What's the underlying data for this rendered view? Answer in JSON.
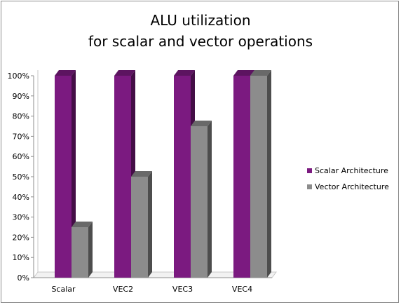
{
  "chart_data": {
    "type": "bar",
    "title_lines": [
      "ALU utilization",
      "for scalar and vector operations"
    ],
    "categories": [
      "Scalar",
      "VEC2",
      "VEC3",
      "VEC4"
    ],
    "series": [
      {
        "name": "Scalar Architecture",
        "color": "#7b1a80",
        "values": [
          100,
          100,
          100,
          100
        ]
      },
      {
        "name": "Vector Architecture",
        "color": "#8c8c8c",
        "values": [
          25,
          50,
          75,
          100
        ]
      }
    ],
    "ylim": [
      0,
      100
    ],
    "yticks": [
      0,
      10,
      20,
      30,
      40,
      50,
      60,
      70,
      80,
      90,
      100
    ],
    "ytick_format": "percent",
    "grid": false,
    "legend_position": "right"
  }
}
